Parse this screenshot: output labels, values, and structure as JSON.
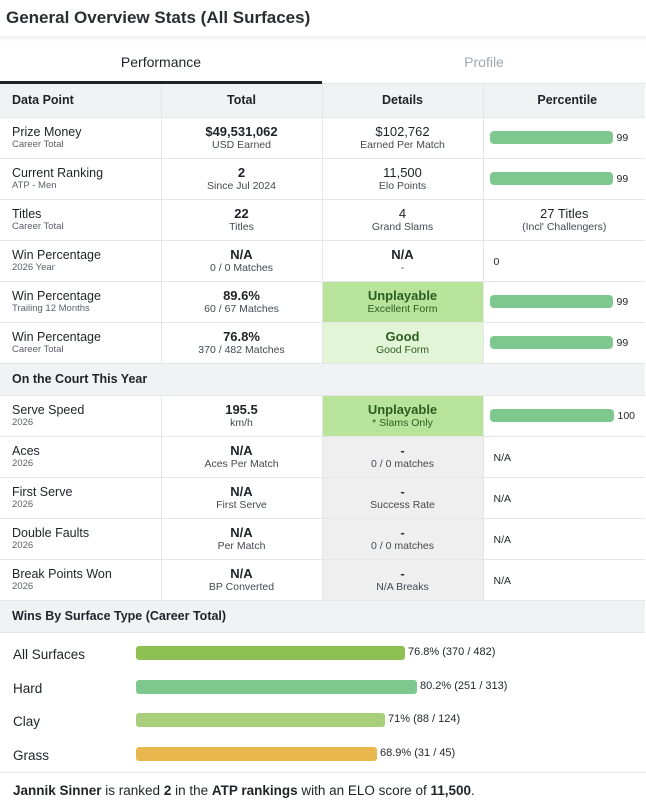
{
  "title": "General Overview Stats (All Surfaces)",
  "tabs": {
    "performance": "Performance",
    "profile": "Profile"
  },
  "headers": {
    "data_point": "Data Point",
    "total": "Total",
    "details": "Details",
    "percentile": "Percentile"
  },
  "rows": [
    {
      "label": "Prize Money",
      "sub": "Career Total",
      "total": "$49,531,062",
      "total_sub": "USD Earned",
      "detail": "$102,762",
      "detail_sub": "Earned Per Match",
      "percentile": "99"
    },
    {
      "label": "Current Ranking",
      "sub": "ATP - Men",
      "total": "2",
      "total_sub": "Since Jul 2024",
      "detail": "11,500",
      "detail_sub": "Elo Points",
      "percentile": "99"
    },
    {
      "label": "Titles",
      "sub": "Career Total",
      "total": "22",
      "total_sub": "Titles",
      "detail": "4",
      "detail_sub": "Grand Slams",
      "pct_main": "27 Titles",
      "pct_sub": "(Incl' Challengers)"
    },
    {
      "label": "Win Percentage",
      "sub": "2026 Year",
      "total": "N/A",
      "total_sub": "0 / 0 Matches",
      "detail": "N/A",
      "detail_sub": "-",
      "percentile": "0"
    },
    {
      "label": "Win Percentage",
      "sub": "Trailing 12 Months",
      "total": "89.6%",
      "total_sub": "60 / 67 Matches",
      "detail": "Unplayable",
      "detail_sub": "Excellent Form",
      "percentile": "99"
    },
    {
      "label": "Win Percentage",
      "sub": "Career Total",
      "total": "76.8%",
      "total_sub": "370 / 482 Matches",
      "detail": "Good",
      "detail_sub": "Good Form",
      "percentile": "99"
    }
  ],
  "court_section": "On the Court This Year",
  "court_rows": [
    {
      "label": "Serve Speed",
      "sub": "2026",
      "total": "195.5",
      "total_sub": "km/h",
      "detail": "Unplayable",
      "detail_sub": "* Slams Only",
      "percentile": "100"
    },
    {
      "label": "Aces",
      "sub": "2026",
      "total": "N/A",
      "total_sub": "Aces Per Match",
      "detail": "-",
      "detail_sub": "0 / 0 matches",
      "percentile": "N/A"
    },
    {
      "label": "First Serve",
      "sub": "2026",
      "total": "N/A",
      "total_sub": "First Serve",
      "detail": "-",
      "detail_sub": "Success Rate",
      "percentile": "N/A"
    },
    {
      "label": "Double Faults",
      "sub": "2026",
      "total": "N/A",
      "total_sub": "Per Match",
      "detail": "-",
      "detail_sub": "0 / 0 matches",
      "percentile": "N/A"
    },
    {
      "label": "Break Points Won",
      "sub": "2026",
      "total": "N/A",
      "total_sub": "BP Converted",
      "detail": "-",
      "detail_sub": "N/A Breaks",
      "percentile": "N/A"
    }
  ],
  "surface_section": "Wins By Surface Type (Career Total)",
  "surfaces": [
    {
      "name": "All Surfaces",
      "pct": 76.8,
      "value": "76.8% (370 / 482)",
      "color": "#8cc152"
    },
    {
      "name": "Hard",
      "pct": 80.2,
      "value": "80.2% (251 / 313)",
      "color": "#7ec890"
    },
    {
      "name": "Clay",
      "pct": 71.0,
      "value": "71% (88 / 124)",
      "color": "#a8d07a"
    },
    {
      "name": "Grass",
      "pct": 68.9,
      "value": "68.9% (31 / 45)",
      "color": "#e8b84e"
    }
  ],
  "footer": {
    "player": "Jannik Sinner",
    "t1": " is ranked ",
    "rank": "2",
    "t2": " in the ",
    "org": "ATP rankings",
    "t3": " with an ELO score of ",
    "elo": "11,500",
    "t4": "."
  },
  "colors": {
    "bar": "#7ec890",
    "form_strong": "#b7e49a",
    "form_good": "#e2f5d6",
    "form_na": "#efefef"
  }
}
